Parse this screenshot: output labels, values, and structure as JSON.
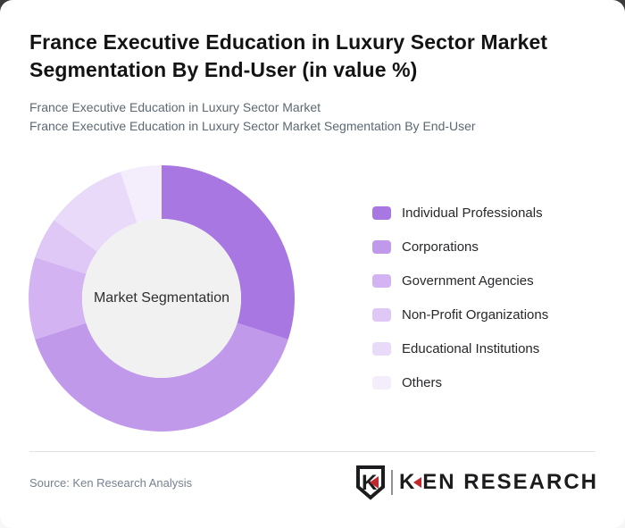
{
  "page": {
    "background_dark": "#3b3b3b",
    "card_background": "#ffffff"
  },
  "header": {
    "title": "France Executive Education in Luxury Sector Market Segmentation By End-User (in value %)",
    "subtitle_line1": "France Executive Education in Luxury Sector Market",
    "subtitle_line2": "France Executive Education in Luxury Sector Market Segmentation By End-User"
  },
  "chart_data": {
    "type": "pie",
    "subtype": "donut",
    "title": "France Executive Education in Luxury Sector Market Segmentation By End-User (in value %)",
    "center_label": "Market Segmentation",
    "categories": [
      "Individual Professionals",
      "Corporations",
      "Government Agencies",
      "Non-Profit Organizations",
      "Educational Institutions",
      "Others"
    ],
    "values": [
      30,
      40,
      10,
      5,
      10,
      5
    ],
    "unit": "%",
    "colors": [
      "#a877e1",
      "#c199eb",
      "#d3b3f1",
      "#dfc8f6",
      "#e9daf9",
      "#f4edfc"
    ],
    "hole_color": "#f1f1f1",
    "start_angle_deg": 0,
    "direction": "clockwise",
    "legend_position": "right",
    "inner_radius_ratio": 0.6,
    "data_labels_shown": false
  },
  "footer": {
    "source": "Source: Ken Research Analysis",
    "logo": {
      "k": "K",
      "rest": "EN RESEARCH",
      "badge_letter": "K",
      "accent_color": "#c1272d"
    }
  }
}
